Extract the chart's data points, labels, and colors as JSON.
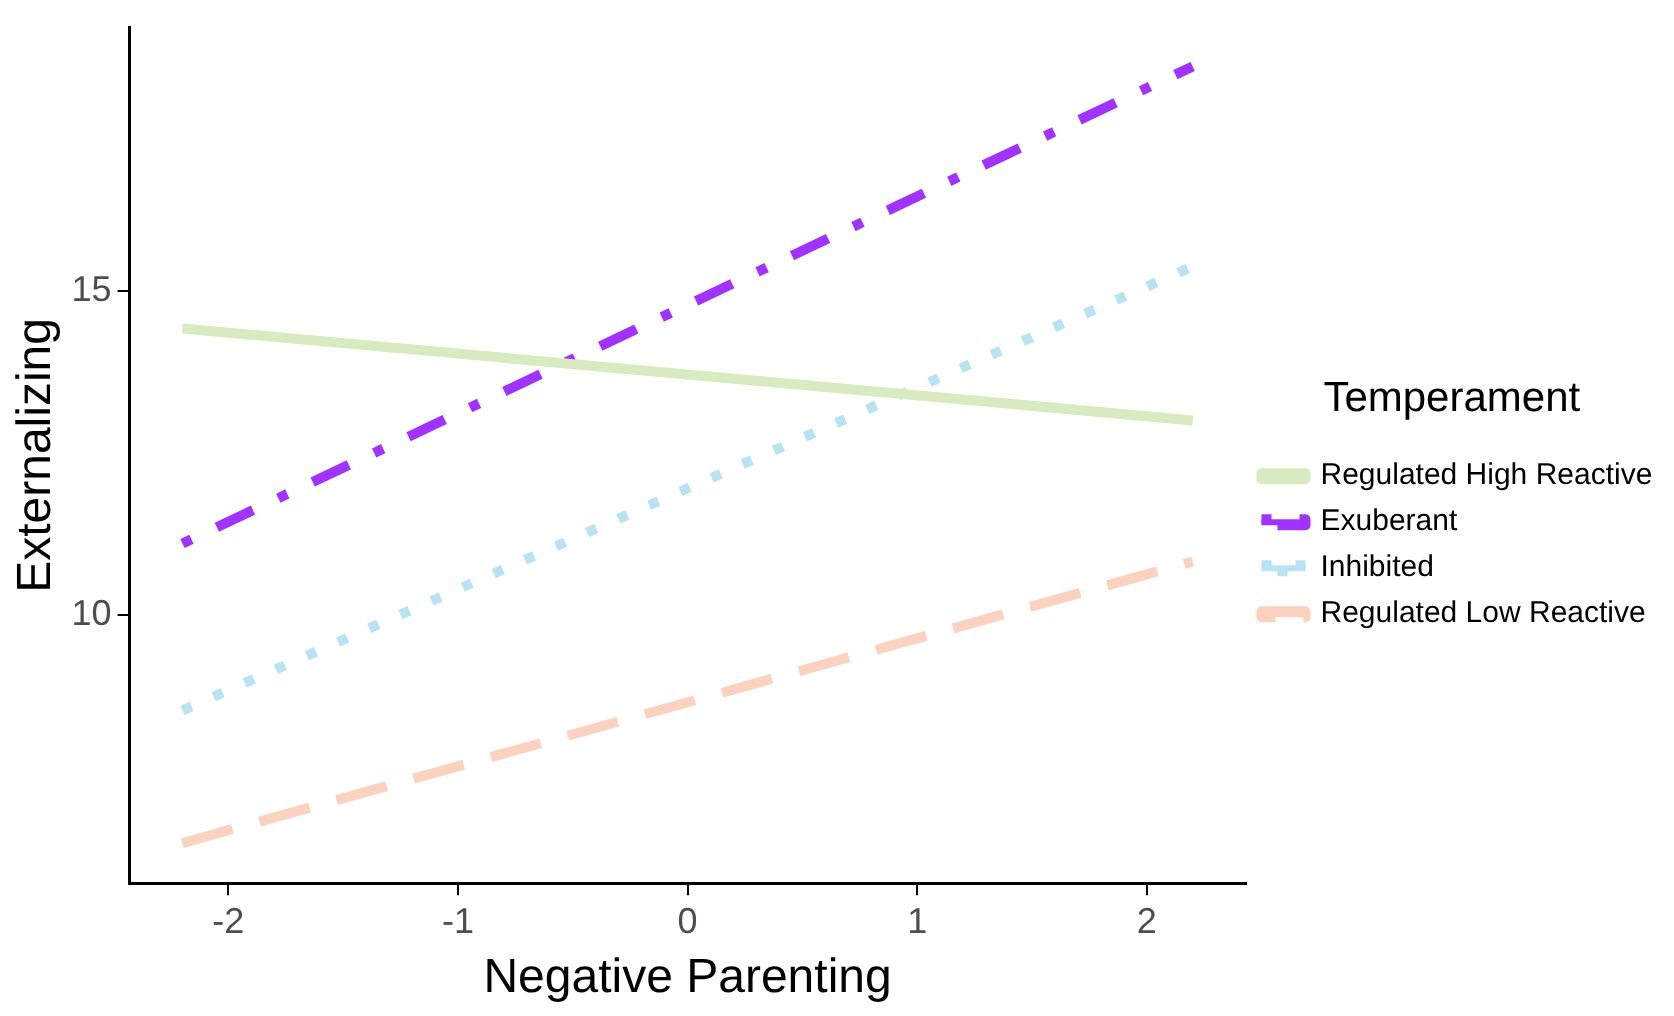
{
  "chart_data": {
    "type": "line",
    "xlabel": "Negative Parenting",
    "ylabel": "Externalizing",
    "legend_title": "Temperament",
    "legend": "right",
    "grid": false,
    "marker": "none",
    "x": [
      -2.2,
      2.2
    ],
    "xlim": [
      -2.43,
      2.43
    ],
    "xticks": [
      -2,
      -1,
      0,
      1,
      2
    ],
    "ylim": [
      5.85,
      19.07
    ],
    "yticks": [
      10,
      15
    ],
    "series": [
      {
        "name": "Regulated High Reactive",
        "color": "#d9e9c0",
        "line_style": "solid",
        "values": [
          14.42,
          13.0
        ]
      },
      {
        "name": "Exuberant",
        "color": "#a033ff",
        "line_style": "dashdot",
        "values": [
          11.1,
          18.47
        ]
      },
      {
        "name": "Inhibited",
        "color": "#b9e3f2",
        "line_style": "dotted",
        "values": [
          8.52,
          15.38
        ]
      },
      {
        "name": "Regulated Low Reactive",
        "color": "#fbd2c0",
        "line_style": "dashed",
        "values": [
          6.47,
          10.82
        ]
      }
    ]
  }
}
